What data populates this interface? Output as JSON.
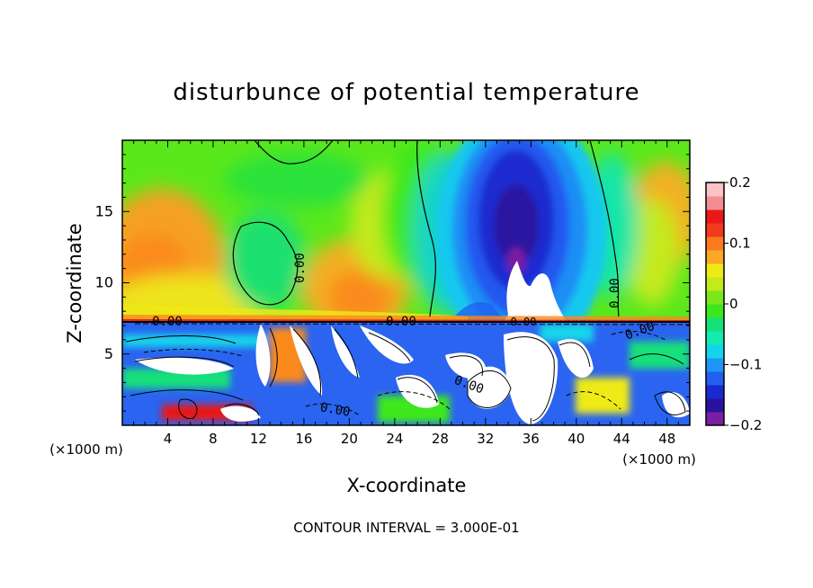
{
  "chart_data": {
    "type": "heatmap",
    "title": "disturbunce of potential temperature",
    "xlabel": "X-coordinate",
    "ylabel": "Z-coordinate",
    "x_unit": "(×1000 m)",
    "z_unit": "(×1000 m)",
    "xlim": [
      0,
      50
    ],
    "ylim": [
      0,
      20
    ],
    "x_ticks": [
      4,
      8,
      12,
      16,
      20,
      24,
      28,
      32,
      36,
      40,
      44,
      48
    ],
    "y_ticks": [
      5,
      10,
      15
    ],
    "colorbar": {
      "min": -0.2,
      "max": 0.2,
      "ticks": [
        "0.2",
        "0.1",
        "0",
        "−0.1",
        "−0.2"
      ],
      "tick_values": [
        0.2,
        0.1,
        0,
        -0.1,
        -0.2
      ],
      "colors": [
        "#7a1fa2",
        "#2a12a0",
        "#1a2ad0",
        "#2160f0",
        "#1e96f5",
        "#14d4ea",
        "#12ecb0",
        "#16e07a",
        "#3ce81c",
        "#7ae81c",
        "#c3ea1a",
        "#eeea16",
        "#fca824",
        "#fc7a1e",
        "#f23a1e",
        "#ea1818",
        "#f28e92",
        "#fcc2c6"
      ]
    },
    "contour_labels": [
      "0.00",
      "0.00",
      "0.00",
      "0.00",
      "0.00",
      "0.00",
      "0.00",
      "0.00"
    ],
    "contour_interval_text": "CONTOUR INTERVAL = 3.000E-01"
  }
}
